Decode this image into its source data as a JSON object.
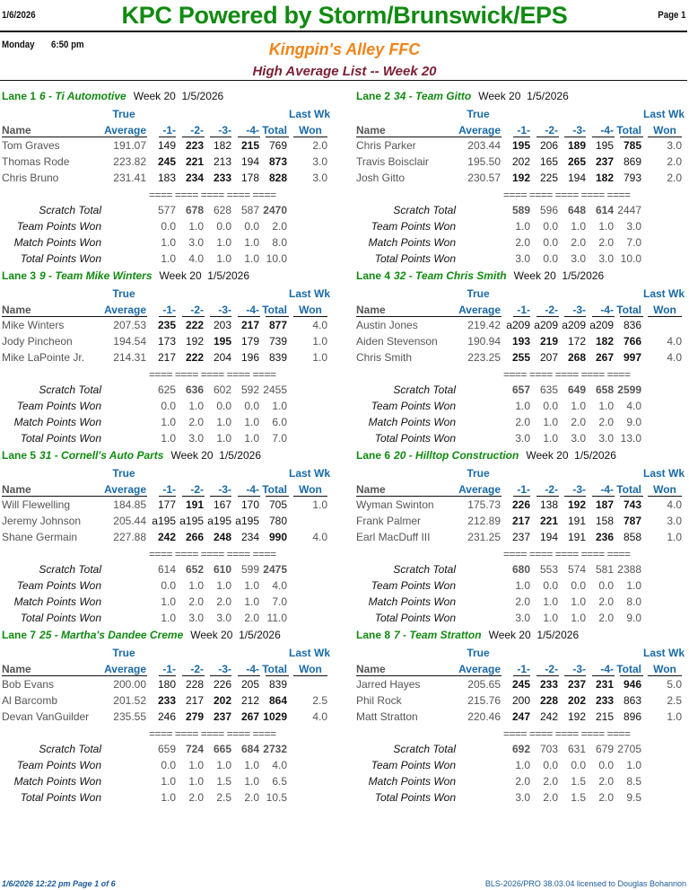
{
  "header": {
    "date": "1/6/2026",
    "title": "KPC Powered by Storm/Brunswick/EPS",
    "page": "Page 1",
    "day": "Monday",
    "time": "6:50 pm",
    "league": "Kingpin's Alley FFC",
    "subtitle": "High Average List -- Week 20"
  },
  "columns": {
    "true": "True",
    "last_wk": "Last Wk",
    "name": "Name",
    "average": "Average",
    "g1": "-1-",
    "g2": "-2-",
    "g3": "-3-",
    "g4": "-4-",
    "total": "Total",
    "won": "Won",
    "separator": "==== ==== ==== ==== ===="
  },
  "labels": {
    "scratch": "Scratch Total",
    "team_points": "Team Points Won",
    "match_points": "Match Points Won",
    "total_points": "Total Points Won"
  },
  "lanes": [
    {
      "lane": "Lane 1",
      "team": "6 - Ti Automotive",
      "week": "Week 20  1/5/2026",
      "players": [
        {
          "name": "Tom Graves",
          "avg": "191.07",
          "scores": [
            "149",
            "223",
            "182",
            "215",
            "769"
          ],
          "bold": [
            1,
            3
          ],
          "won": "2.0"
        },
        {
          "name": "Thomas Rode",
          "avg": "223.82",
          "scores": [
            "245",
            "221",
            "213",
            "194",
            "873"
          ],
          "bold": [
            0,
            1,
            4
          ],
          "won": "3.0"
        },
        {
          "name": "Chris Bruno",
          "avg": "231.41",
          "scores": [
            "183",
            "234",
            "233",
            "178",
            "828"
          ],
          "bold": [
            1,
            2,
            4
          ],
          "won": "3.0"
        }
      ],
      "scratch": [
        "577",
        "678",
        "628",
        "587",
        "2470"
      ],
      "scratch_bold": [
        1,
        4
      ],
      "team_points": [
        "0.0",
        "1.0",
        "0.0",
        "0.0",
        "2.0"
      ],
      "match_points": [
        "1.0",
        "3.0",
        "1.0",
        "1.0",
        "8.0"
      ],
      "total_points": [
        "1.0",
        "4.0",
        "1.0",
        "1.0",
        "10.0"
      ]
    },
    {
      "lane": "Lane 2",
      "team": "34 - Team Gitto",
      "week": "Week 20  1/5/2026",
      "players": [
        {
          "name": "Chris Parker",
          "avg": "203.44",
          "scores": [
            "195",
            "206",
            "189",
            "195",
            "785"
          ],
          "bold": [
            0,
            2,
            4
          ],
          "won": "3.0"
        },
        {
          "name": "Travis Boisclair",
          "avg": "195.50",
          "scores": [
            "202",
            "165",
            "265",
            "237",
            "869"
          ],
          "bold": [
            2,
            3
          ],
          "won": "2.0"
        },
        {
          "name": "Josh Gitto",
          "avg": "230.57",
          "scores": [
            "192",
            "225",
            "194",
            "182",
            "793"
          ],
          "bold": [
            0,
            3
          ],
          "won": "2.0"
        }
      ],
      "scratch": [
        "589",
        "596",
        "648",
        "614",
        "2447"
      ],
      "scratch_bold": [
        0,
        2,
        3
      ],
      "team_points": [
        "1.0",
        "0.0",
        "1.0",
        "1.0",
        "3.0"
      ],
      "match_points": [
        "2.0",
        "0.0",
        "2.0",
        "2.0",
        "7.0"
      ],
      "total_points": [
        "3.0",
        "0.0",
        "3.0",
        "3.0",
        "10.0"
      ]
    },
    {
      "lane": "Lane 3",
      "team": "9 - Team Mike Winters",
      "week": "Week 20  1/5/2026",
      "players": [
        {
          "name": "Mike Winters",
          "avg": "207.53",
          "scores": [
            "235",
            "222",
            "203",
            "217",
            "877"
          ],
          "bold": [
            0,
            1,
            3,
            4
          ],
          "won": "4.0"
        },
        {
          "name": "Jody Pincheon",
          "avg": "194.54",
          "scores": [
            "173",
            "192",
            "195",
            "179",
            "739"
          ],
          "bold": [
            2
          ],
          "won": "1.0"
        },
        {
          "name": "Mike LaPointe Jr.",
          "avg": "214.31",
          "scores": [
            "217",
            "222",
            "204",
            "196",
            "839"
          ],
          "bold": [
            1
          ],
          "won": "1.0"
        }
      ],
      "scratch": [
        "625",
        "636",
        "602",
        "592",
        "2455"
      ],
      "scratch_bold": [
        1
      ],
      "team_points": [
        "0.0",
        "1.0",
        "0.0",
        "0.0",
        "1.0"
      ],
      "match_points": [
        "1.0",
        "2.0",
        "1.0",
        "1.0",
        "6.0"
      ],
      "total_points": [
        "1.0",
        "3.0",
        "1.0",
        "1.0",
        "7.0"
      ]
    },
    {
      "lane": "Lane 4",
      "team": "32 - Team Chris Smith",
      "week": "Week 20  1/5/2026",
      "players": [
        {
          "name": "Austin Jones",
          "avg": "219.42",
          "scores": [
            "a209",
            "a209",
            "a209",
            "a209",
            "836"
          ],
          "bold": [],
          "won": ""
        },
        {
          "name": "Aiden Stevenson",
          "avg": "190.94",
          "scores": [
            "193",
            "219",
            "172",
            "182",
            "766"
          ],
          "bold": [
            0,
            1,
            3,
            4
          ],
          "won": "4.0"
        },
        {
          "name": "Chris Smith",
          "avg": "223.25",
          "scores": [
            "255",
            "207",
            "268",
            "267",
            "997"
          ],
          "bold": [
            0,
            2,
            3,
            4
          ],
          "won": "4.0"
        }
      ],
      "scratch": [
        "657",
        "635",
        "649",
        "658",
        "2599"
      ],
      "scratch_bold": [
        0,
        2,
        3,
        4
      ],
      "team_points": [
        "1.0",
        "0.0",
        "1.0",
        "1.0",
        "4.0"
      ],
      "match_points": [
        "2.0",
        "1.0",
        "2.0",
        "2.0",
        "9.0"
      ],
      "total_points": [
        "3.0",
        "1.0",
        "3.0",
        "3.0",
        "13.0"
      ]
    },
    {
      "lane": "Lane 5",
      "team": "31 - Cornell's Auto Parts",
      "week": "Week 20  1/5/2026",
      "players": [
        {
          "name": "Will Flewelling",
          "avg": "184.85",
          "scores": [
            "177",
            "191",
            "167",
            "170",
            "705"
          ],
          "bold": [
            1
          ],
          "won": "1.0"
        },
        {
          "name": "Jeremy Johnson",
          "avg": "205.44",
          "scores": [
            "a195",
            "a195",
            "a195",
            "a195",
            "780"
          ],
          "bold": [],
          "won": ""
        },
        {
          "name": "Shane Germain",
          "avg": "227.88",
          "scores": [
            "242",
            "266",
            "248",
            "234",
            "990"
          ],
          "bold": [
            0,
            1,
            2,
            4
          ],
          "won": "4.0"
        }
      ],
      "scratch": [
        "614",
        "652",
        "610",
        "599",
        "2475"
      ],
      "scratch_bold": [
        1,
        2,
        4
      ],
      "team_points": [
        "0.0",
        "1.0",
        "1.0",
        "1.0",
        "4.0"
      ],
      "match_points": [
        "1.0",
        "2.0",
        "2.0",
        "1.0",
        "7.0"
      ],
      "total_points": [
        "1.0",
        "3.0",
        "3.0",
        "2.0",
        "11.0"
      ]
    },
    {
      "lane": "Lane 6",
      "team": "20 - Hilltop Construction",
      "week": "Week 20  1/5/2026",
      "players": [
        {
          "name": "Wyman Swinton",
          "avg": "175.73",
          "scores": [
            "226",
            "138",
            "192",
            "187",
            "743"
          ],
          "bold": [
            0,
            2,
            3,
            4
          ],
          "won": "4.0"
        },
        {
          "name": "Frank Palmer",
          "avg": "212.89",
          "scores": [
            "217",
            "221",
            "191",
            "158",
            "787"
          ],
          "bold": [
            0,
            1,
            4
          ],
          "won": "3.0"
        },
        {
          "name": "Earl MacDuff III",
          "avg": "231.25",
          "scores": [
            "237",
            "194",
            "191",
            "236",
            "858"
          ],
          "bold": [
            3
          ],
          "won": "1.0"
        }
      ],
      "scratch": [
        "680",
        "553",
        "574",
        "581",
        "2388"
      ],
      "scratch_bold": [
        0
      ],
      "team_points": [
        "1.0",
        "0.0",
        "0.0",
        "0.0",
        "1.0"
      ],
      "match_points": [
        "2.0",
        "1.0",
        "1.0",
        "2.0",
        "8.0"
      ],
      "total_points": [
        "3.0",
        "1.0",
        "1.0",
        "2.0",
        "9.0"
      ]
    },
    {
      "lane": "Lane 7",
      "team": "25 - Martha's Dandee Creme",
      "week": "Week 20  1/5/2026",
      "players": [
        {
          "name": "Bob Evans",
          "avg": "200.00",
          "scores": [
            "180",
            "228",
            "226",
            "205",
            "839"
          ],
          "bold": [],
          "won": ""
        },
        {
          "name": "Al Barcomb",
          "avg": "201.52",
          "scores": [
            "233",
            "217",
            "202",
            "212",
            "864"
          ],
          "bold": [
            0,
            2,
            4
          ],
          "won": "2.5"
        },
        {
          "name": "Devan VanGuilder",
          "avg": "235.55",
          "scores": [
            "246",
            "279",
            "237",
            "267",
            "1029"
          ],
          "bold": [
            1,
            2,
            3,
            4
          ],
          "won": "4.0"
        }
      ],
      "scratch": [
        "659",
        "724",
        "665",
        "684",
        "2732"
      ],
      "scratch_bold": [
        1,
        2,
        3,
        4
      ],
      "team_points": [
        "0.0",
        "1.0",
        "1.0",
        "1.0",
        "4.0"
      ],
      "match_points": [
        "1.0",
        "1.0",
        "1.5",
        "1.0",
        "6.5"
      ],
      "total_points": [
        "1.0",
        "2.0",
        "2.5",
        "2.0",
        "10.5"
      ]
    },
    {
      "lane": "Lane 8",
      "team": "7 - Team Stratton",
      "week": "Week 20  1/5/2026",
      "players": [
        {
          "name": "Jarred Hayes",
          "avg": "205.65",
          "scores": [
            "245",
            "233",
            "237",
            "231",
            "946"
          ],
          "bold": [
            0,
            1,
            2,
            3,
            4
          ],
          "won": "5.0"
        },
        {
          "name": "Phil Rock",
          "avg": "215.76",
          "scores": [
            "200",
            "228",
            "202",
            "233",
            "863"
          ],
          "bold": [
            1,
            2,
            3
          ],
          "won": "2.5"
        },
        {
          "name": "Matt Stratton",
          "avg": "220.46",
          "scores": [
            "247",
            "242",
            "192",
            "215",
            "896"
          ],
          "bold": [
            0
          ],
          "won": "1.0"
        }
      ],
      "scratch": [
        "692",
        "703",
        "631",
        "679",
        "2705"
      ],
      "scratch_bold": [
        0
      ],
      "team_points": [
        "1.0",
        "0.0",
        "0.0",
        "0.0",
        "1.0"
      ],
      "match_points": [
        "2.0",
        "2.0",
        "1.5",
        "2.0",
        "8.5"
      ],
      "total_points": [
        "3.0",
        "2.0",
        "1.5",
        "2.0",
        "9.5"
      ]
    }
  ],
  "footer": {
    "left": "1/6/2026  12:22 pm  Page 1 of 6",
    "right": "BLS-2026/PRO 38.03.04 licensed to Douglas Bohannon"
  },
  "colors": {
    "title": "#118a11",
    "league": "#f08418",
    "subtitle": "#7a1f35",
    "column_header": "#1a6aa6"
  }
}
